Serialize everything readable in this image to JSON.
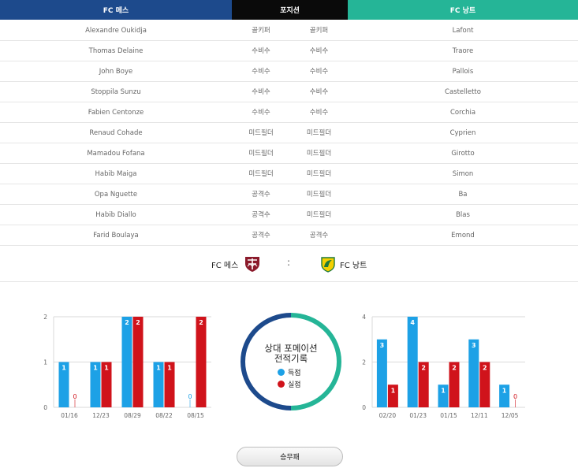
{
  "header": {
    "home": "FC 메스",
    "position": "포지션",
    "away": "FC 낭트"
  },
  "lineup": [
    {
      "home": "Alexandre Oukidja",
      "pos_home": "골키퍼",
      "pos_away": "골키퍼",
      "away": "Lafont"
    },
    {
      "home": "Thomas Delaine",
      "pos_home": "수비수",
      "pos_away": "수비수",
      "away": "Traore"
    },
    {
      "home": "John Boye",
      "pos_home": "수비수",
      "pos_away": "수비수",
      "away": "Pallois"
    },
    {
      "home": "Stoppila Sunzu",
      "pos_home": "수비수",
      "pos_away": "수비수",
      "away": "Castelletto"
    },
    {
      "home": "Fabien Centonze",
      "pos_home": "수비수",
      "pos_away": "수비수",
      "away": "Corchia"
    },
    {
      "home": "Renaud Cohade",
      "pos_home": "미드필더",
      "pos_away": "미드필더",
      "away": "Cyprien"
    },
    {
      "home": "Mamadou Fofana",
      "pos_home": "미드필더",
      "pos_away": "미드필더",
      "away": "Girotto"
    },
    {
      "home": "Habib Maiga",
      "pos_home": "미드필더",
      "pos_away": "미드필더",
      "away": "Simon"
    },
    {
      "home": "Opa Nguette",
      "pos_home": "공격수",
      "pos_away": "미드필더",
      "away": "Ba"
    },
    {
      "home": "Habib Diallo",
      "pos_home": "공격수",
      "pos_away": "미드필더",
      "away": "Blas"
    },
    {
      "home": "Farid Boulaya",
      "pos_home": "공격수",
      "pos_away": "공격수",
      "away": "Emond"
    }
  ],
  "matchup": {
    "home_name": "FC 메스",
    "separator": ":",
    "away_name": "FC 낭트"
  },
  "center": {
    "title_line1": "상대 포메이션",
    "title_line2": "전적기록",
    "legend_scored": "득점",
    "legend_conceded": "실점"
  },
  "colors": {
    "home": "#1d4a8c",
    "away": "#25b597",
    "scored": "#1da1e6",
    "conceded": "#d0131b"
  },
  "button": {
    "label": "승무패"
  },
  "chart_data": [
    {
      "type": "bar",
      "categories": [
        "01/16",
        "12/23",
        "08/29",
        "08/22",
        "08/15"
      ],
      "series": [
        {
          "name": "득점",
          "values": [
            1,
            1,
            2,
            1,
            0
          ]
        },
        {
          "name": "실점",
          "values": [
            0,
            1,
            2,
            1,
            2
          ]
        }
      ],
      "yticks": [
        0,
        1,
        2
      ],
      "ylim": [
        0,
        2
      ]
    },
    {
      "type": "bar",
      "categories": [
        "02/20",
        "01/23",
        "01/15",
        "12/11",
        "12/05"
      ],
      "series": [
        {
          "name": "득점",
          "values": [
            3,
            4,
            1,
            3,
            1
          ]
        },
        {
          "name": "실점",
          "values": [
            1,
            2,
            2,
            2,
            0
          ]
        }
      ],
      "yticks": [
        0,
        2,
        4
      ],
      "ylim": [
        0,
        4
      ]
    }
  ]
}
